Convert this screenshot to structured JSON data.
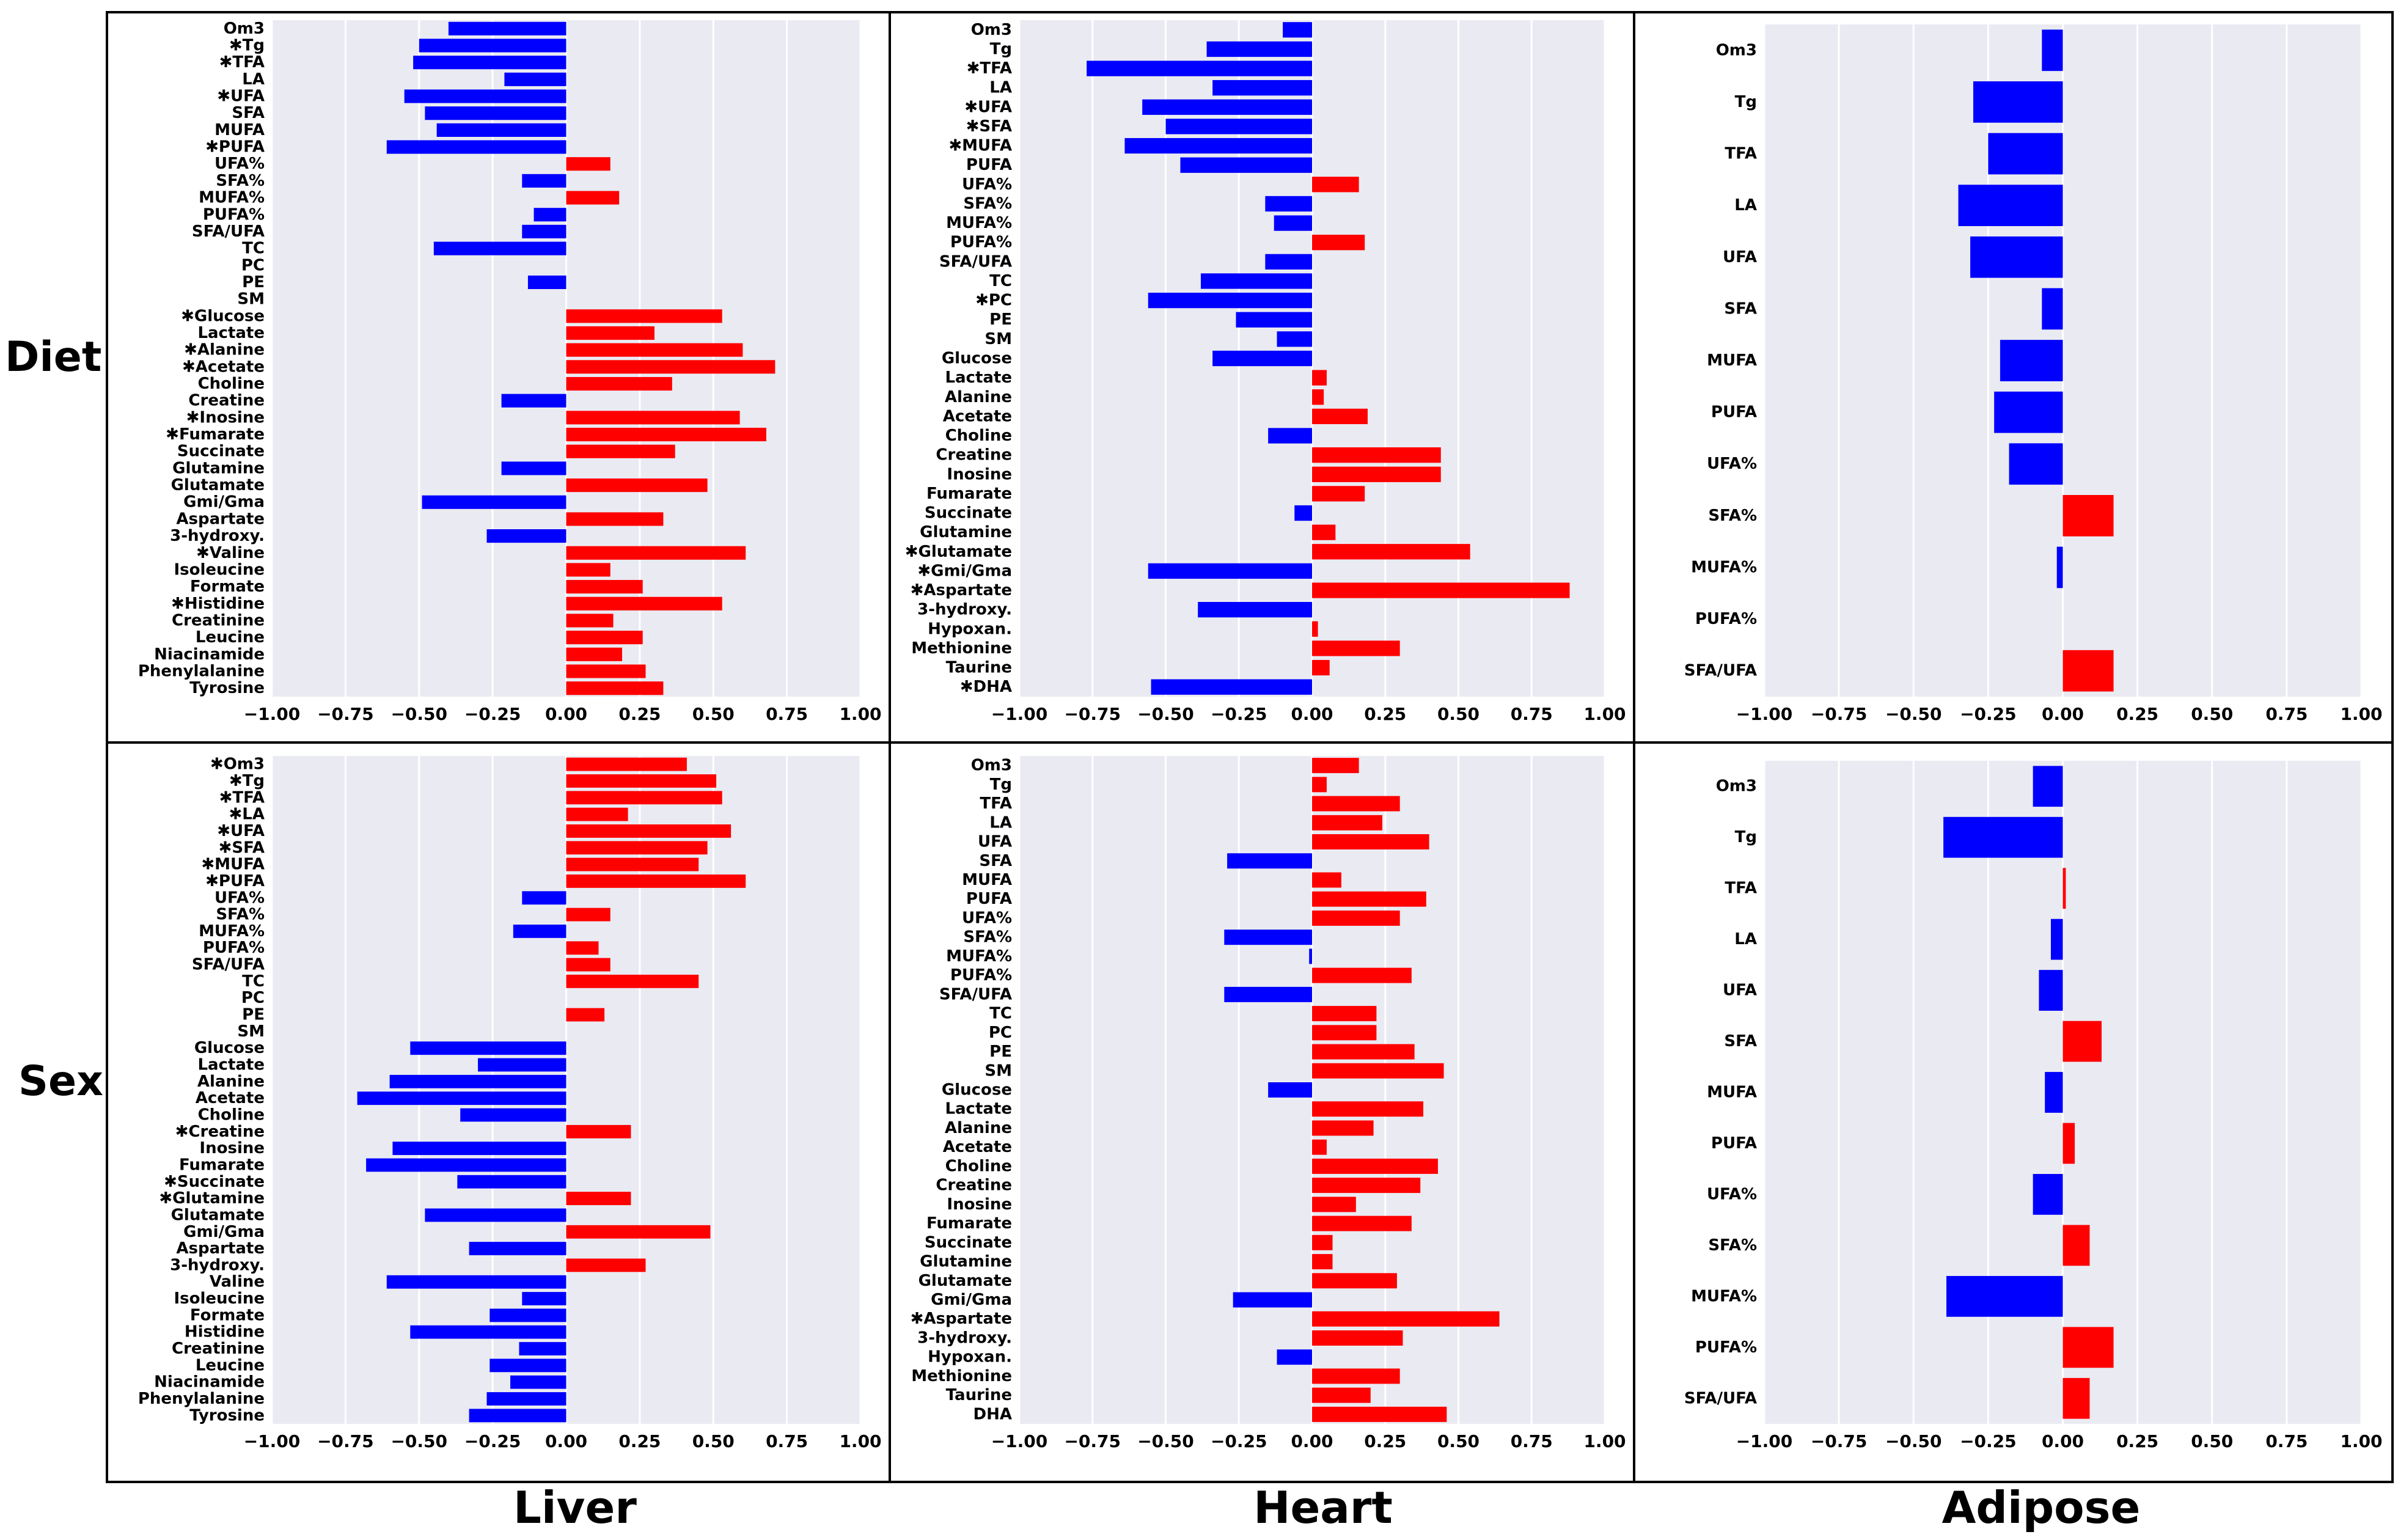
{
  "figure": {
    "row_labels": [
      "Diet",
      "Sex"
    ],
    "col_labels": [
      "Liver",
      "Heart",
      "Adipose"
    ],
    "colors": {
      "positive": "#ff0000",
      "negative": "#0000ff",
      "plot_bg": "#eaeaf2",
      "grid": "#ffffff"
    },
    "x_ticks": [
      "−1.00",
      "−0.75",
      "−0.50",
      "−0.25",
      "0.00",
      "0.25",
      "0.50",
      "0.75",
      "1.00"
    ]
  },
  "chart_data": [
    {
      "id": "diet-liver",
      "type": "bar",
      "orientation": "horizontal",
      "row": "Diet",
      "column": "Liver",
      "xlim": [
        -1,
        1
      ],
      "grid": true,
      "categories": [
        "Om3",
        "Tg",
        "TFA",
        "LA",
        "UFA",
        "SFA",
        "MUFA",
        "PUFA",
        "UFA%",
        "SFA%",
        "MUFA%",
        "PUFA%",
        "SFA/UFA",
        "TC",
        "PC",
        "PE",
        "SM",
        "Glucose",
        "Lactate",
        "Alanine",
        "Acetate",
        "Choline",
        "Creatine",
        "Inosine",
        "Fumarate",
        "Succinate",
        "Glutamine",
        "Glutamate",
        "Gmi/Gma",
        "Aspartate",
        "3-hydroxy.",
        "Valine",
        "Isoleucine",
        "Formate",
        "Histidine",
        "Creatinine",
        "Leucine",
        "Niacinamide",
        "Phenylalanine",
        "Tyrosine"
      ],
      "labels": [
        "Om3",
        "✱Tg",
        "✱TFA",
        "LA",
        "✱UFA",
        "SFA",
        "MUFA",
        "✱PUFA",
        "UFA%",
        "SFA%",
        "MUFA%",
        "PUFA%",
        "SFA/UFA",
        "TC",
        "PC",
        "PE",
        "SM",
        "✱Glucose",
        "Lactate",
        "✱Alanine",
        "✱Acetate",
        "Choline",
        "Creatine",
        "✱Inosine",
        "✱Fumarate",
        "Succinate",
        "Glutamine",
        "Glutamate",
        "Gmi/Gma",
        "Aspartate",
        "3-hydroxy.",
        "✱Valine",
        "Isoleucine",
        "Formate",
        "✱Histidine",
        "Creatinine",
        "Leucine",
        "Niacinamide",
        "Phenylalanine",
        "Tyrosine"
      ],
      "values": [
        -0.4,
        -0.5,
        -0.52,
        -0.21,
        -0.55,
        -0.48,
        -0.44,
        -0.61,
        0.15,
        -0.15,
        0.18,
        -0.11,
        -0.15,
        -0.45,
        0,
        -0.13,
        0,
        0.53,
        0.3,
        0.6,
        0.71,
        0.36,
        -0.22,
        0.59,
        0.68,
        0.37,
        -0.22,
        0.48,
        -0.49,
        0.33,
        -0.27,
        0.61,
        0.15,
        0.26,
        0.53,
        0.16,
        0.26,
        0.19,
        0.27,
        0.33
      ]
    },
    {
      "id": "diet-heart",
      "type": "bar",
      "orientation": "horizontal",
      "row": "Diet",
      "column": "Heart",
      "xlim": [
        -1,
        1
      ],
      "grid": true,
      "categories": [
        "Om3",
        "Tg",
        "TFA",
        "LA",
        "UFA",
        "SFA",
        "MUFA",
        "PUFA",
        "UFA%",
        "SFA%",
        "MUFA%",
        "PUFA%",
        "SFA/UFA",
        "TC",
        "PC",
        "PE",
        "SM",
        "Glucose",
        "Lactate",
        "Alanine",
        "Acetate",
        "Choline",
        "Creatine",
        "Inosine",
        "Fumarate",
        "Succinate",
        "Glutamine",
        "Glutamate",
        "Gmi/Gma",
        "Aspartate",
        "3-hydroxy.",
        "Hypoxan.",
        "Methionine",
        "Taurine",
        "DHA"
      ],
      "labels": [
        "Om3",
        "Tg",
        "✱TFA",
        "LA",
        "✱UFA",
        "✱SFA",
        "✱MUFA",
        "PUFA",
        "UFA%",
        "SFA%",
        "MUFA%",
        "PUFA%",
        "SFA/UFA",
        "TC",
        "✱PC",
        "PE",
        "SM",
        "Glucose",
        "Lactate",
        "Alanine",
        "Acetate",
        "Choline",
        "Creatine",
        "Inosine",
        "Fumarate",
        "Succinate",
        "Glutamine",
        "✱Glutamate",
        "✱Gmi/Gma",
        "✱Aspartate",
        "3-hydroxy.",
        "Hypoxan.",
        "Methionine",
        "Taurine",
        "✱DHA"
      ],
      "values": [
        -0.1,
        -0.36,
        -0.77,
        -0.34,
        -0.58,
        -0.5,
        -0.64,
        -0.45,
        0.16,
        -0.16,
        -0.13,
        0.18,
        -0.16,
        -0.38,
        -0.56,
        -0.26,
        -0.12,
        -0.34,
        0.05,
        0.04,
        0.19,
        -0.15,
        0.44,
        0.44,
        0.18,
        -0.06,
        0.08,
        0.54,
        -0.56,
        0.88,
        -0.39,
        0.02,
        0.3,
        0.06,
        -0.55
      ]
    },
    {
      "id": "diet-adipose",
      "type": "bar",
      "orientation": "horizontal",
      "row": "Diet",
      "column": "Adipose",
      "xlim": [
        -1,
        1
      ],
      "grid": true,
      "categories": [
        "Om3",
        "Tg",
        "TFA",
        "LA",
        "UFA",
        "SFA",
        "MUFA",
        "PUFA",
        "UFA%",
        "SFA%",
        "MUFA%",
        "PUFA%",
        "SFA/UFA"
      ],
      "labels": [
        "Om3",
        "Tg",
        "TFA",
        "LA",
        "UFA",
        "SFA",
        "MUFA",
        "PUFA",
        "UFA%",
        "SFA%",
        "MUFA%",
        "PUFA%",
        "SFA/UFA"
      ],
      "values": [
        -0.07,
        -0.3,
        -0.25,
        -0.35,
        -0.31,
        -0.07,
        -0.21,
        -0.23,
        -0.18,
        0.17,
        -0.02,
        0,
        0.17
      ]
    },
    {
      "id": "sex-liver",
      "type": "bar",
      "orientation": "horizontal",
      "row": "Sex",
      "column": "Liver",
      "xlim": [
        -1,
        1
      ],
      "grid": true,
      "categories": [
        "Om3",
        "Tg",
        "TFA",
        "LA",
        "UFA",
        "SFA",
        "MUFA",
        "PUFA",
        "UFA%",
        "SFA%",
        "MUFA%",
        "PUFA%",
        "SFA/UFA",
        "TC",
        "PC",
        "PE",
        "SM",
        "Glucose",
        "Lactate",
        "Alanine",
        "Acetate",
        "Choline",
        "Creatine",
        "Inosine",
        "Fumarate",
        "Succinate",
        "Glutamine",
        "Glutamate",
        "Gmi/Gma",
        "Aspartate",
        "3-hydroxy.",
        "Valine",
        "Isoleucine",
        "Formate",
        "Histidine",
        "Creatinine",
        "Leucine",
        "Niacinamide",
        "Phenylalanine",
        "Tyrosine"
      ],
      "labels": [
        "✱Om3",
        "✱Tg",
        "✱TFA",
        "✱LA",
        "✱UFA",
        "✱SFA",
        "✱MUFA",
        "✱PUFA",
        "UFA%",
        "SFA%",
        "MUFA%",
        "PUFA%",
        "SFA/UFA",
        "TC",
        "PC",
        "PE",
        "SM",
        "Glucose",
        "Lactate",
        "Alanine",
        "Acetate",
        "Choline",
        "✱Creatine",
        "Inosine",
        "Fumarate",
        "✱Succinate",
        "✱Glutamine",
        "Glutamate",
        "Gmi/Gma",
        "Aspartate",
        "3-hydroxy.",
        "Valine",
        "Isoleucine",
        "Formate",
        "Histidine",
        "Creatinine",
        "Leucine",
        "Niacinamide",
        "Phenylalanine",
        "Tyrosine"
      ],
      "values": [
        0.41,
        0.51,
        0.53,
        0.21,
        0.56,
        0.48,
        0.45,
        0.61,
        -0.15,
        0.15,
        -0.18,
        0.11,
        0.15,
        0.45,
        0,
        0.13,
        0,
        -0.53,
        -0.3,
        -0.6,
        -0.71,
        -0.36,
        0.22,
        -0.59,
        -0.68,
        -0.37,
        0.22,
        -0.48,
        0.49,
        -0.33,
        0.27,
        -0.61,
        -0.15,
        -0.26,
        -0.53,
        -0.16,
        -0.26,
        -0.19,
        -0.27,
        -0.33
      ]
    },
    {
      "id": "sex-heart",
      "type": "bar",
      "orientation": "horizontal",
      "row": "Sex",
      "column": "Heart",
      "xlim": [
        -1,
        1
      ],
      "grid": true,
      "categories": [
        "Om3",
        "Tg",
        "TFA",
        "LA",
        "UFA",
        "SFA",
        "MUFA",
        "PUFA",
        "UFA%",
        "SFA%",
        "MUFA%",
        "PUFA%",
        "SFA/UFA",
        "TC",
        "PC",
        "PE",
        "SM",
        "Glucose",
        "Lactate",
        "Alanine",
        "Acetate",
        "Choline",
        "Creatine",
        "Inosine",
        "Fumarate",
        "Succinate",
        "Glutamine",
        "Glutamate",
        "Gmi/Gma",
        "Aspartate",
        "3-hydroxy.",
        "Hypoxan.",
        "Methionine",
        "Taurine",
        "DHA"
      ],
      "labels": [
        "Om3",
        "Tg",
        "TFA",
        "LA",
        "UFA",
        "SFA",
        "MUFA",
        "PUFA",
        "UFA%",
        "SFA%",
        "MUFA%",
        "PUFA%",
        "SFA/UFA",
        "TC",
        "PC",
        "PE",
        "SM",
        "Glucose",
        "Lactate",
        "Alanine",
        "Acetate",
        "Choline",
        "Creatine",
        "Inosine",
        "Fumarate",
        "Succinate",
        "Glutamine",
        "Glutamate",
        "Gmi/Gma",
        "✱Aspartate",
        "3-hydroxy.",
        "Hypoxan.",
        "Methionine",
        "Taurine",
        "DHA"
      ],
      "values": [
        0.16,
        0.05,
        0.3,
        0.24,
        0.4,
        -0.29,
        0.1,
        0.39,
        0.3,
        -0.3,
        -0.01,
        0.34,
        -0.3,
        0.22,
        0.22,
        0.35,
        0.45,
        -0.15,
        0.38,
        0.21,
        0.05,
        0.43,
        0.37,
        0.15,
        0.34,
        0.07,
        0.07,
        0.29,
        -0.27,
        0.64,
        0.31,
        -0.12,
        0.3,
        0.2,
        0.46
      ]
    },
    {
      "id": "sex-adipose",
      "type": "bar",
      "orientation": "horizontal",
      "row": "Sex",
      "column": "Adipose",
      "xlim": [
        -1,
        1
      ],
      "grid": true,
      "categories": [
        "Om3",
        "Tg",
        "TFA",
        "LA",
        "UFA",
        "SFA",
        "MUFA",
        "PUFA",
        "UFA%",
        "SFA%",
        "MUFA%",
        "PUFA%",
        "SFA/UFA"
      ],
      "labels": [
        "Om3",
        "Tg",
        "TFA",
        "LA",
        "UFA",
        "SFA",
        "MUFA",
        "PUFA",
        "UFA%",
        "SFA%",
        "MUFA%",
        "PUFA%",
        "SFA/UFA"
      ],
      "values": [
        -0.1,
        -0.4,
        0.01,
        -0.04,
        -0.08,
        0.13,
        -0.06,
        0.04,
        -0.1,
        0.09,
        -0.39,
        0.17,
        0.09
      ]
    }
  ]
}
